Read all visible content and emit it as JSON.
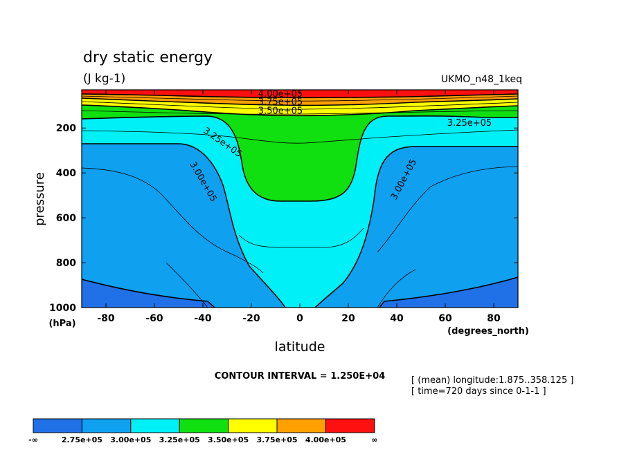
{
  "header": {
    "title": "dry static energy",
    "units": "(J kg-1)",
    "dataset": "UKMO_n48_1keq"
  },
  "footer": {
    "contour_interval": "CONTOUR INTERVAL = 1.250E+04",
    "note_longitude": "[ (mean) longitude:1.875..358.125 ]",
    "note_time": "[ time=720 days since 0-1-1 ]"
  },
  "chart_data": {
    "type": "heatmap",
    "subtype": "filled-contour",
    "xlabel": "latitude",
    "xunits": "(degrees_north)",
    "ylabel": "pressure",
    "yunits": "(hPa)",
    "xlim": [
      -90,
      90
    ],
    "ylim": [
      1000,
      30
    ],
    "y_inverted": true,
    "xticks": [
      "-80",
      "-60",
      "-40",
      "-20",
      "0",
      "20",
      "40",
      "60",
      "80"
    ],
    "xtick_values": [
      -80,
      -60,
      -40,
      -20,
      0,
      20,
      40,
      60,
      80
    ],
    "yticks": [
      "200",
      "400",
      "600",
      "800",
      "1000"
    ],
    "ytick_values": [
      200,
      400,
      600,
      800,
      1000
    ],
    "contour_labels": [
      {
        "text": "4.00e+05",
        "lat": -8,
        "p": 50
      },
      {
        "text": "3.75e+05",
        "lat": -8,
        "p": 85
      },
      {
        "text": "3.50e+05",
        "lat": -8,
        "p": 125
      },
      {
        "text": "3.25e+05",
        "lat": 70,
        "p": 180
      },
      {
        "text": "3.25e+05",
        "lat": -32,
        "p": 265
      },
      {
        "text": "3.00e+05",
        "lat": -40,
        "p": 440
      },
      {
        "text": "3.00e+05",
        "lat": 43,
        "p": 430
      }
    ],
    "colorbar": {
      "colors": [
        "#2070e8",
        "#10a0f0",
        "#00f0f8",
        "#10e010",
        "#ffff00",
        "#ffa000",
        "#ff1010"
      ],
      "labels": [
        "-∞",
        "2.75e+05",
        "3.00e+05",
        "3.25e+05",
        "3.50e+05",
        "3.75e+05",
        "4.00e+05",
        "∞"
      ]
    }
  }
}
